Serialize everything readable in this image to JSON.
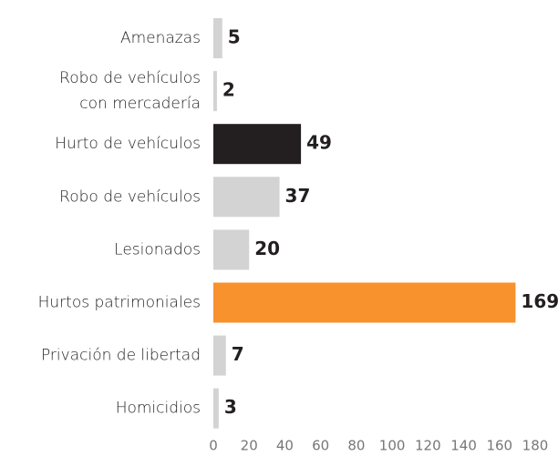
{
  "chart_data": {
    "type": "hbar",
    "categories": [
      "Amenazas",
      [
        "Robo de vehículos",
        "con mercadería"
      ],
      "Hurto de vehículos",
      "Robo de vehículos",
      "Lesionados",
      "Hurtos patrimoniales",
      "Privación de libertad",
      "Homicidios"
    ],
    "values": [
      5,
      2,
      49,
      37,
      20,
      169,
      7,
      3
    ],
    "colors": [
      "#d3d3d3",
      "#d3d3d3",
      "#231f20",
      "#d3d3d3",
      "#d3d3d3",
      "#f7922d",
      "#d3d3d3",
      "#d3d3d3"
    ],
    "xlim": [
      0,
      180
    ],
    "xticks": [
      0,
      20,
      40,
      60,
      80,
      100,
      120,
      140,
      160,
      180
    ],
    "grid": false
  }
}
